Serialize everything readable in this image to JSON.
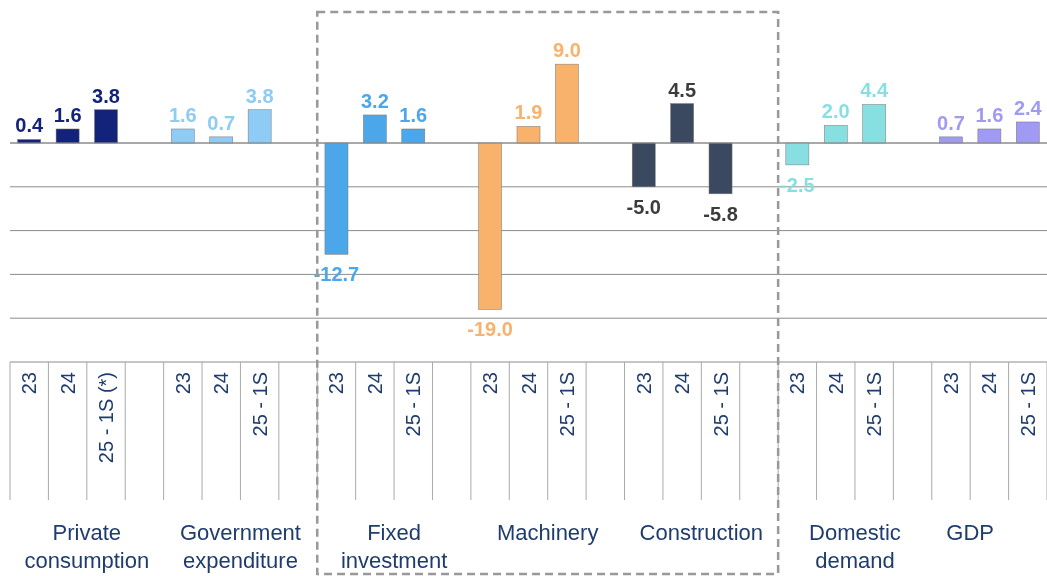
{
  "chart_data": {
    "type": "bar",
    "categories": [
      "23",
      "24",
      "25 - 1S (*)",
      null,
      "23",
      "24",
      "25 - 1S",
      null,
      "23",
      "24",
      "25 - 1S",
      null,
      "23",
      "24",
      "25 - 1S",
      null,
      "23",
      "24",
      "25 - 1S",
      null,
      "23",
      "24",
      "25 - 1S",
      null,
      "23",
      "24",
      "25 - 1S"
    ],
    "series": [
      {
        "color": "#13237a",
        "values": [
          0.4,
          1.6,
          3.8,
          null,
          null,
          null,
          null,
          null,
          null,
          null,
          null,
          null,
          null,
          null,
          null,
          null,
          null,
          null,
          null,
          null,
          null,
          null,
          null,
          null,
          null,
          null,
          null
        ],
        "value_labels": [
          "0.4",
          "1.6",
          "3.8",
          null,
          null,
          null,
          null,
          null,
          null,
          null,
          null,
          null,
          null,
          null,
          null,
          null,
          null,
          null,
          null,
          null,
          null,
          null,
          null,
          null,
          null,
          null,
          null
        ]
      },
      {
        "color": "#8ecbf5",
        "values": [
          null,
          null,
          null,
          null,
          1.6,
          0.7,
          3.8,
          null,
          null,
          null,
          null,
          null,
          null,
          null,
          null,
          null,
          null,
          null,
          null,
          null,
          null,
          null,
          null,
          null,
          null,
          null,
          null
        ],
        "value_labels": [
          null,
          null,
          null,
          null,
          "1.6",
          "0.7",
          "3.8",
          null,
          null,
          null,
          null,
          null,
          null,
          null,
          null,
          null,
          null,
          null,
          null,
          null,
          null,
          null,
          null,
          null,
          null,
          null,
          null
        ]
      },
      {
        "color": "#4ca6ea",
        "values": [
          null,
          null,
          null,
          null,
          null,
          null,
          null,
          null,
          -12.7,
          3.2,
          1.6,
          null,
          null,
          null,
          null,
          null,
          null,
          null,
          null,
          null,
          null,
          null,
          null,
          null,
          null,
          null,
          null
        ],
        "value_labels": [
          null,
          null,
          null,
          null,
          null,
          null,
          null,
          null,
          "-12.7",
          "3.2",
          "1.6",
          null,
          null,
          null,
          null,
          null,
          null,
          null,
          null,
          null,
          null,
          null,
          null,
          null,
          null,
          null,
          null
        ]
      },
      {
        "color": "#f9b26b",
        "values": [
          null,
          null,
          null,
          null,
          null,
          null,
          null,
          null,
          null,
          null,
          null,
          null,
          -19.0,
          1.9,
          9.0,
          null,
          null,
          null,
          null,
          null,
          null,
          null,
          null,
          null,
          null,
          null,
          null
        ],
        "value_labels": [
          null,
          null,
          null,
          null,
          null,
          null,
          null,
          null,
          null,
          null,
          null,
          null,
          "-19.0",
          "1.9",
          "9.0",
          null,
          null,
          null,
          null,
          null,
          null,
          null,
          null,
          null,
          null,
          null,
          null
        ]
      },
      {
        "color": "#3a4860",
        "values": [
          null,
          null,
          null,
          null,
          null,
          null,
          null,
          null,
          null,
          null,
          null,
          null,
          null,
          null,
          null,
          null,
          -5.0,
          4.5,
          -5.8,
          null,
          null,
          null,
          null,
          null,
          null,
          null,
          null
        ],
        "value_labels": [
          null,
          null,
          null,
          null,
          null,
          null,
          null,
          null,
          null,
          null,
          null,
          null,
          null,
          null,
          null,
          null,
          "-5.0",
          "4.5",
          "-5.8",
          null,
          null,
          null,
          null,
          null,
          null,
          null,
          null
        ]
      },
      {
        "color": "#88dfe2",
        "values": [
          null,
          null,
          null,
          null,
          null,
          null,
          null,
          null,
          null,
          null,
          null,
          null,
          null,
          null,
          null,
          null,
          null,
          null,
          null,
          null,
          -2.5,
          2.0,
          4.4,
          null,
          null,
          null,
          null
        ],
        "value_labels": [
          null,
          null,
          null,
          null,
          null,
          null,
          null,
          null,
          null,
          null,
          null,
          null,
          null,
          null,
          null,
          null,
          null,
          null,
          null,
          null,
          "-2.5",
          "2.0",
          "4.4",
          null,
          null,
          null,
          null
        ]
      },
      {
        "color": "#a09af2",
        "values": [
          null,
          null,
          null,
          null,
          null,
          null,
          null,
          null,
          null,
          null,
          null,
          null,
          null,
          null,
          null,
          null,
          null,
          null,
          null,
          null,
          null,
          null,
          null,
          null,
          0.7,
          1.6,
          2.4
        ],
        "value_labels": [
          null,
          null,
          null,
          null,
          null,
          null,
          null,
          null,
          null,
          null,
          null,
          null,
          null,
          null,
          null,
          null,
          null,
          null,
          null,
          null,
          null,
          null,
          null,
          null,
          "0.7",
          "1.6",
          "2.4"
        ]
      }
    ],
    "annotations": [
      "Private consumption",
      "Government expenditure",
      "Fixed investment",
      "Machinery",
      "Construction",
      "Domestic demand",
      "GDP"
    ],
    "yticks": [
      -25,
      -20,
      -15,
      -10,
      -5,
      0
    ],
    "grid": "y",
    "tick_labels": "x"
  }
}
